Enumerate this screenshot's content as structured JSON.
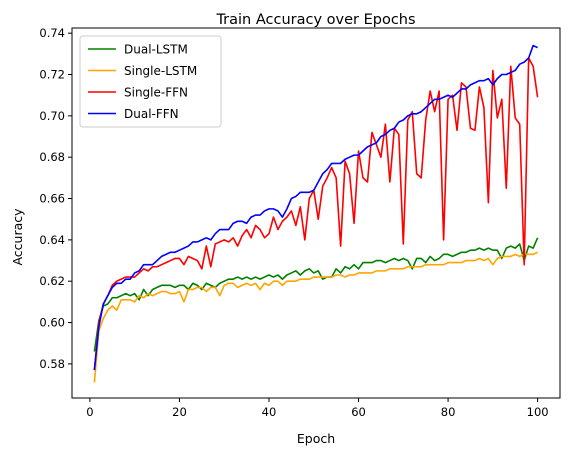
{
  "chart_data": {
    "type": "line",
    "title": "Train Accuracy over Epochs",
    "xlabel": "Epoch",
    "ylabel": "Accuracy",
    "xlim": [
      -4,
      105
    ],
    "ylim": [
      0.5635,
      0.7425
    ],
    "xticks": [
      0,
      20,
      40,
      60,
      80,
      100
    ],
    "xtick_labels": [
      "0",
      "20",
      "40",
      "60",
      "80",
      "100"
    ],
    "yticks": [
      0.58,
      0.6,
      0.62,
      0.64,
      0.66,
      0.68,
      0.7,
      0.72,
      0.74
    ],
    "ytick_labels": [
      "0.58",
      "0.60",
      "0.62",
      "0.64",
      "0.66",
      "0.68",
      "0.70",
      "0.72",
      "0.74"
    ],
    "grid": false,
    "legend_position": "upper-left",
    "series": [
      {
        "name": "Dual-LSTM",
        "color": "#008000",
        "x": [
          1,
          2,
          3,
          4,
          5,
          6,
          7,
          8,
          9,
          10,
          11,
          12,
          13,
          14,
          15,
          16,
          17,
          18,
          19,
          20,
          21,
          22,
          23,
          24,
          25,
          26,
          27,
          28,
          29,
          30,
          31,
          32,
          33,
          34,
          35,
          36,
          37,
          38,
          39,
          40,
          41,
          42,
          43,
          44,
          45,
          46,
          47,
          48,
          49,
          50,
          51,
          52,
          53,
          54,
          55,
          56,
          57,
          58,
          59,
          60,
          61,
          62,
          63,
          64,
          65,
          66,
          67,
          68,
          69,
          70,
          71,
          72,
          73,
          74,
          75,
          76,
          77,
          78,
          79,
          80,
          81,
          82,
          83,
          84,
          85,
          86,
          87,
          88,
          89,
          90,
          91,
          92,
          93,
          94,
          95,
          96,
          97,
          98,
          99,
          100
        ],
        "values": [
          0.586,
          0.601,
          0.608,
          0.609,
          0.612,
          0.612,
          0.613,
          0.614,
          0.613,
          0.614,
          0.611,
          0.616,
          0.613,
          0.616,
          0.617,
          0.618,
          0.618,
          0.618,
          0.617,
          0.618,
          0.618,
          0.616,
          0.619,
          0.618,
          0.616,
          0.619,
          0.618,
          0.617,
          0.619,
          0.62,
          0.621,
          0.621,
          0.622,
          0.621,
          0.622,
          0.621,
          0.622,
          0.621,
          0.622,
          0.623,
          0.622,
          0.623,
          0.621,
          0.623,
          0.624,
          0.625,
          0.623,
          0.625,
          0.626,
          0.624,
          0.625,
          0.621,
          0.622,
          0.622,
          0.626,
          0.624,
          0.627,
          0.626,
          0.628,
          0.626,
          0.629,
          0.629,
          0.629,
          0.63,
          0.63,
          0.629,
          0.63,
          0.631,
          0.63,
          0.631,
          0.63,
          0.626,
          0.631,
          0.631,
          0.629,
          0.632,
          0.63,
          0.631,
          0.633,
          0.633,
          0.632,
          0.633,
          0.634,
          0.634,
          0.635,
          0.635,
          0.636,
          0.635,
          0.636,
          0.635,
          0.635,
          0.631,
          0.636,
          0.637,
          0.636,
          0.638,
          0.63,
          0.637,
          0.636,
          0.641
        ]
      },
      {
        "name": "Single-LSTM",
        "color": "#ffa500",
        "x": [
          1,
          2,
          3,
          4,
          5,
          6,
          7,
          8,
          9,
          10,
          11,
          12,
          13,
          14,
          15,
          16,
          17,
          18,
          19,
          20,
          21,
          22,
          23,
          24,
          25,
          26,
          27,
          28,
          29,
          30,
          31,
          32,
          33,
          34,
          35,
          36,
          37,
          38,
          39,
          40,
          41,
          42,
          43,
          44,
          45,
          46,
          47,
          48,
          49,
          50,
          51,
          52,
          53,
          54,
          55,
          56,
          57,
          58,
          59,
          60,
          61,
          62,
          63,
          64,
          65,
          66,
          67,
          68,
          69,
          70,
          71,
          72,
          73,
          74,
          75,
          76,
          77,
          78,
          79,
          80,
          81,
          82,
          83,
          84,
          85,
          86,
          87,
          88,
          89,
          90,
          91,
          92,
          93,
          94,
          95,
          96,
          97,
          98,
          99,
          100
        ],
        "values": [
          0.571,
          0.596,
          0.602,
          0.606,
          0.608,
          0.606,
          0.611,
          0.611,
          0.611,
          0.61,
          0.613,
          0.612,
          0.614,
          0.613,
          0.614,
          0.615,
          0.615,
          0.614,
          0.614,
          0.615,
          0.61,
          0.616,
          0.616,
          0.617,
          0.617,
          0.615,
          0.617,
          0.617,
          0.613,
          0.618,
          0.619,
          0.619,
          0.617,
          0.618,
          0.619,
          0.618,
          0.619,
          0.616,
          0.619,
          0.618,
          0.62,
          0.62,
          0.618,
          0.62,
          0.62,
          0.62,
          0.621,
          0.621,
          0.621,
          0.622,
          0.622,
          0.622,
          0.622,
          0.622,
          0.623,
          0.623,
          0.622,
          0.623,
          0.623,
          0.624,
          0.624,
          0.624,
          0.624,
          0.625,
          0.625,
          0.625,
          0.626,
          0.626,
          0.626,
          0.626,
          0.627,
          0.627,
          0.627,
          0.627,
          0.628,
          0.628,
          0.628,
          0.628,
          0.628,
          0.629,
          0.629,
          0.629,
          0.629,
          0.63,
          0.63,
          0.63,
          0.631,
          0.63,
          0.631,
          0.628,
          0.631,
          0.632,
          0.632,
          0.632,
          0.633,
          0.632,
          0.633,
          0.633,
          0.633,
          0.634
        ]
      },
      {
        "name": "Single-FFN",
        "color": "#ff0000",
        "x": [
          1,
          2,
          3,
          4,
          5,
          6,
          7,
          8,
          9,
          10,
          11,
          12,
          13,
          14,
          15,
          16,
          17,
          18,
          19,
          20,
          21,
          22,
          23,
          24,
          25,
          26,
          27,
          28,
          29,
          30,
          31,
          32,
          33,
          34,
          35,
          36,
          37,
          38,
          39,
          40,
          41,
          42,
          43,
          44,
          45,
          46,
          47,
          48,
          49,
          50,
          51,
          52,
          53,
          54,
          55,
          56,
          57,
          58,
          59,
          60,
          61,
          62,
          63,
          64,
          65,
          66,
          67,
          68,
          69,
          70,
          71,
          72,
          73,
          74,
          75,
          76,
          77,
          78,
          79,
          80,
          81,
          82,
          83,
          84,
          85,
          86,
          87,
          88,
          89,
          90,
          91,
          92,
          93,
          94,
          95,
          96,
          97,
          98,
          99,
          100
        ],
        "values": [
          0.577,
          0.6,
          0.609,
          0.613,
          0.618,
          0.62,
          0.621,
          0.622,
          0.622,
          0.622,
          0.624,
          0.626,
          0.625,
          0.627,
          0.627,
          0.628,
          0.629,
          0.63,
          0.631,
          0.631,
          0.628,
          0.632,
          0.631,
          0.63,
          0.626,
          0.637,
          0.627,
          0.638,
          0.639,
          0.64,
          0.639,
          0.641,
          0.637,
          0.642,
          0.645,
          0.641,
          0.647,
          0.645,
          0.641,
          0.643,
          0.651,
          0.645,
          0.649,
          0.651,
          0.654,
          0.647,
          0.656,
          0.64,
          0.66,
          0.664,
          0.65,
          0.666,
          0.67,
          0.675,
          0.67,
          0.637,
          0.678,
          0.672,
          0.648,
          0.683,
          0.67,
          0.668,
          0.692,
          0.686,
          0.68,
          0.696,
          0.668,
          0.694,
          0.691,
          0.638,
          0.698,
          0.702,
          0.672,
          0.67,
          0.698,
          0.712,
          0.702,
          0.712,
          0.64,
          0.708,
          0.71,
          0.693,
          0.716,
          0.714,
          0.694,
          0.693,
          0.714,
          0.704,
          0.658,
          0.722,
          0.699,
          0.708,
          0.665,
          0.724,
          0.699,
          0.696,
          0.628,
          0.728,
          0.724,
          0.709
        ]
      },
      {
        "name": "Dual-FFN",
        "color": "#0000ff",
        "x": [
          1,
          2,
          3,
          4,
          5,
          6,
          7,
          8,
          9,
          10,
          11,
          12,
          13,
          14,
          15,
          16,
          17,
          18,
          19,
          20,
          21,
          22,
          23,
          24,
          25,
          26,
          27,
          28,
          29,
          30,
          31,
          32,
          33,
          34,
          35,
          36,
          37,
          38,
          39,
          40,
          41,
          42,
          43,
          44,
          45,
          46,
          47,
          48,
          49,
          50,
          51,
          52,
          53,
          54,
          55,
          56,
          57,
          58,
          59,
          60,
          61,
          62,
          63,
          64,
          65,
          66,
          67,
          68,
          69,
          70,
          71,
          72,
          73,
          74,
          75,
          76,
          77,
          78,
          79,
          80,
          81,
          82,
          83,
          84,
          85,
          86,
          87,
          88,
          89,
          90,
          91,
          92,
          93,
          94,
          95,
          96,
          97,
          98,
          99,
          100
        ],
        "values": [
          0.577,
          0.598,
          0.609,
          0.613,
          0.617,
          0.619,
          0.619,
          0.621,
          0.621,
          0.624,
          0.625,
          0.628,
          0.628,
          0.628,
          0.63,
          0.632,
          0.633,
          0.634,
          0.634,
          0.635,
          0.636,
          0.637,
          0.639,
          0.639,
          0.64,
          0.641,
          0.64,
          0.643,
          0.645,
          0.645,
          0.645,
          0.648,
          0.649,
          0.649,
          0.648,
          0.651,
          0.652,
          0.652,
          0.654,
          0.655,
          0.655,
          0.654,
          0.651,
          0.655,
          0.66,
          0.661,
          0.663,
          0.663,
          0.663,
          0.664,
          0.668,
          0.672,
          0.674,
          0.677,
          0.677,
          0.677,
          0.679,
          0.68,
          0.681,
          0.681,
          0.683,
          0.685,
          0.686,
          0.687,
          0.69,
          0.691,
          0.693,
          0.694,
          0.697,
          0.698,
          0.7,
          0.701,
          0.701,
          0.702,
          0.704,
          0.706,
          0.708,
          0.708,
          0.709,
          0.71,
          0.709,
          0.711,
          0.713,
          0.713,
          0.715,
          0.716,
          0.717,
          0.717,
          0.718,
          0.715,
          0.718,
          0.72,
          0.72,
          0.721,
          0.722,
          0.725,
          0.726,
          0.728,
          0.734,
          0.733
        ]
      }
    ]
  }
}
